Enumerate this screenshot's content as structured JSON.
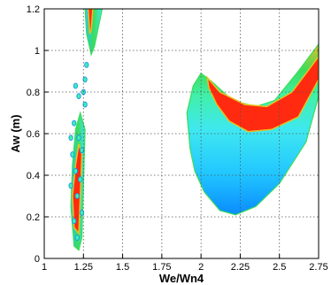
{
  "chart_data": {
    "type": "heatmap",
    "xlabel": "We/Wn4",
    "ylabel": "Aw (m)",
    "xlim": [
      1,
      2.75
    ],
    "ylim": [
      0,
      1.2
    ],
    "x_ticks": [
      "1",
      "1.25",
      "1.5",
      "1.75",
      "2",
      "2.25",
      "2.5",
      "2.75"
    ],
    "y_ticks": [
      "0",
      "0.2",
      "0.4",
      "0.6",
      "0.8",
      "1",
      "1.2"
    ],
    "grid": true,
    "grid_style": "dotted",
    "colormap": [
      "#0a8cff",
      "#22c8ff",
      "#3fe8f0",
      "#40f0a8",
      "#3cdc5a",
      "#e8c020",
      "#ff2a10"
    ],
    "regions": [
      {
        "region": "upper-tongue",
        "outline": [
          [
            1.3,
            0.98
          ],
          [
            1.27,
            1.08
          ],
          [
            1.26,
            1.2
          ],
          [
            1.37,
            1.2
          ],
          [
            1.32,
            1.02
          ]
        ],
        "core": [
          [
            1.29,
            1.08
          ],
          [
            1.28,
            1.2
          ],
          [
            1.31,
            1.2
          ],
          [
            1.3,
            1.1
          ]
        ]
      },
      {
        "region": "narrow-vertical-band",
        "outline": [
          [
            1.19,
            0.06
          ],
          [
            1.17,
            0.25
          ],
          [
            1.18,
            0.45
          ],
          [
            1.2,
            0.62
          ],
          [
            1.23,
            0.7
          ],
          [
            1.26,
            0.62
          ],
          [
            1.25,
            0.35
          ],
          [
            1.24,
            0.1
          ],
          [
            1.22,
            0.04
          ]
        ],
        "core": [
          [
            1.19,
            0.15
          ],
          [
            1.18,
            0.3
          ],
          [
            1.2,
            0.45
          ],
          [
            1.22,
            0.55
          ],
          [
            1.24,
            0.5
          ],
          [
            1.23,
            0.3
          ],
          [
            1.22,
            0.12
          ]
        ]
      },
      {
        "region": "right-crescent",
        "outline": [
          [
            1.93,
            0.53
          ],
          [
            1.91,
            0.7
          ],
          [
            1.95,
            0.83
          ],
          [
            2.0,
            0.89
          ],
          [
            2.07,
            0.85
          ],
          [
            2.2,
            0.76
          ],
          [
            2.35,
            0.73
          ],
          [
            2.47,
            0.76
          ],
          [
            2.62,
            0.9
          ],
          [
            2.75,
            1.03
          ],
          [
            2.75,
            0.78
          ],
          [
            2.67,
            0.56
          ],
          [
            2.5,
            0.36
          ],
          [
            2.35,
            0.25
          ],
          [
            2.22,
            0.21
          ],
          [
            2.12,
            0.23
          ],
          [
            2.02,
            0.32
          ],
          [
            1.96,
            0.42
          ]
        ],
        "core": [
          [
            2.04,
            0.87
          ],
          [
            2.12,
            0.8
          ],
          [
            2.28,
            0.74
          ],
          [
            2.42,
            0.73
          ],
          [
            2.58,
            0.8
          ],
          [
            2.75,
            0.97
          ],
          [
            2.75,
            0.86
          ],
          [
            2.62,
            0.68
          ],
          [
            2.45,
            0.62
          ],
          [
            2.3,
            0.61
          ],
          [
            2.18,
            0.66
          ],
          [
            2.1,
            0.74
          ],
          [
            2.05,
            0.82
          ]
        ]
      }
    ],
    "spots": [
      [
        1.2,
        0.83
      ],
      [
        1.26,
        0.86
      ],
      [
        1.27,
        0.93
      ],
      [
        1.25,
        0.8
      ],
      [
        1.26,
        0.74
      ],
      [
        1.22,
        0.78
      ],
      [
        1.19,
        0.65
      ],
      [
        1.17,
        0.58
      ],
      [
        1.22,
        0.58
      ],
      [
        1.24,
        0.52
      ],
      [
        1.18,
        0.5
      ],
      [
        1.2,
        0.42
      ],
      [
        1.23,
        0.38
      ],
      [
        1.17,
        0.35
      ],
      [
        1.21,
        0.3
      ],
      [
        1.19,
        0.18
      ],
      [
        1.24,
        0.22
      ],
      [
        1.21,
        0.1
      ]
    ]
  }
}
